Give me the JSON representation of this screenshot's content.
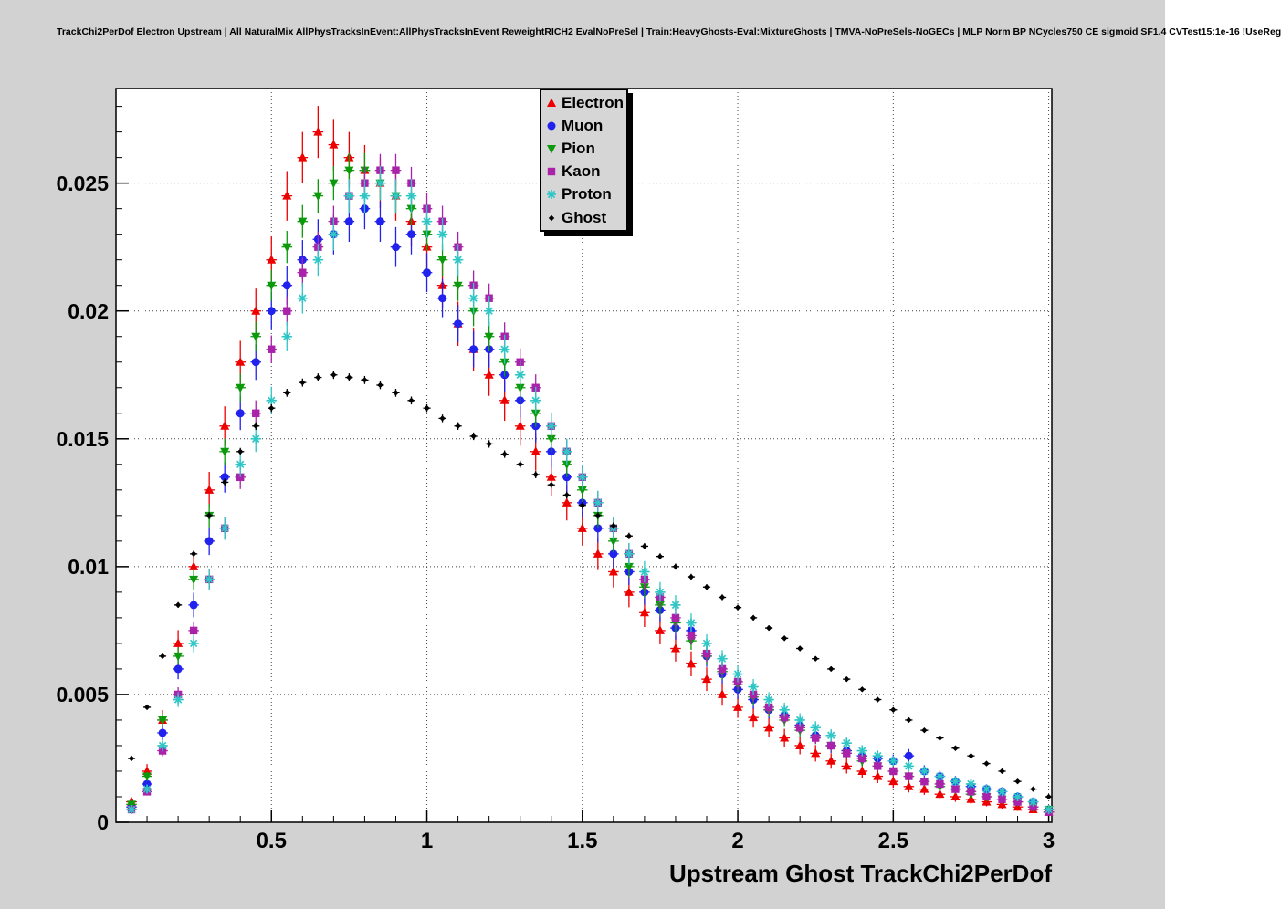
{
  "page": {
    "background_color": "#d2d2d2",
    "plot_background_color": "#ffffff",
    "grid_color": "#444444"
  },
  "header": {
    "title": "TrackChi2PerDof Electron Upstream | All NaturalMix AllPhysTracksInEvent:AllPhysTracksInEvent ReweightRICH2 EvalNoPreSel | Train:HeavyGhosts-Eval:MixtureGhosts | TMVA-NoPreSels-NoGECs | MLP Norm BP NCycles750 CE sigmoid SF1.4 CVTest15:1e-16 !UseReg"
  },
  "chart_data": {
    "type": "scatter",
    "title": "TrackChi2PerDof Electron Upstream | All NaturalMix AllPhysTracksInEvent:AllPhysTracksInEvent ReweightRICH2 EvalNoPreSel | Train:HeavyGhosts-Eval:MixtureGhosts | TMVA-NoPreSels-NoGECs | MLP Norm BP NCycles750 CE sigmoid SF1.4 CVTest15:1e-16 !UseReg",
    "xlabel": "Upstream Ghost TrackChi2PerDof",
    "ylabel": "",
    "xlim": [
      0,
      3.01
    ],
    "ylim": [
      0,
      0.0287
    ],
    "grid": true,
    "legend_position": "top-center",
    "xticks": {
      "values": [
        0.5,
        1,
        1.5,
        2,
        2.5,
        3
      ],
      "labels": [
        "0.5",
        "1",
        "1.5",
        "2",
        "2.5",
        "3"
      ]
    },
    "yticks": {
      "values": [
        0,
        0.005,
        0.01,
        0.015,
        0.02,
        0.025
      ],
      "labels": [
        "0",
        "0.005",
        "0.01",
        "0.015",
        "0.02",
        "0.025"
      ]
    },
    "x": [
      0.05,
      0.1,
      0.15,
      0.2,
      0.25,
      0.3,
      0.35,
      0.4,
      0.45,
      0.5,
      0.55,
      0.6,
      0.65,
      0.7,
      0.75,
      0.8,
      0.85,
      0.9,
      0.95,
      1,
      1.05,
      1.1,
      1.15,
      1.2,
      1.25,
      1.3,
      1.35,
      1.4,
      1.45,
      1.5,
      1.55,
      1.6,
      1.65,
      1.7,
      1.75,
      1.8,
      1.85,
      1.9,
      1.95,
      2,
      2.05,
      2.1,
      2.15,
      2.2,
      2.25,
      2.3,
      2.35,
      2.4,
      2.45,
      2.5,
      2.55,
      2.6,
      2.65,
      2.7,
      2.75,
      2.8,
      2.85,
      2.9,
      2.95,
      3
    ],
    "series": [
      {
        "name": "Electron",
        "color": "#ee0000",
        "marker": "triangle-up",
        "err_scale": 0.0062,
        "xerr": 0.017,
        "values": [
          0.0008,
          0.002,
          0.004,
          0.007,
          0.01,
          0.013,
          0.0155,
          0.018,
          0.02,
          0.022,
          0.0245,
          0.026,
          0.027,
          0.0265,
          0.026,
          0.0255,
          0.025,
          0.0245,
          0.0235,
          0.0225,
          0.021,
          0.0195,
          0.0185,
          0.0175,
          0.0165,
          0.0155,
          0.0145,
          0.0135,
          0.0125,
          0.0115,
          0.0105,
          0.0098,
          0.009,
          0.0082,
          0.0075,
          0.0068,
          0.0062,
          0.0056,
          0.005,
          0.0045,
          0.0041,
          0.0037,
          0.0033,
          0.003,
          0.0027,
          0.0024,
          0.0022,
          0.002,
          0.0018,
          0.0016,
          0.0014,
          0.0013,
          0.0011,
          0.001,
          0.0009,
          0.0008,
          0.0007,
          0.0006,
          0.0005,
          0.0004
        ]
      },
      {
        "name": "Muon",
        "color": "#2222ee",
        "marker": "circle",
        "err_scale": 0.0052,
        "xerr": 0.017,
        "values": [
          0.0006,
          0.0015,
          0.0035,
          0.006,
          0.0085,
          0.011,
          0.0135,
          0.016,
          0.018,
          0.02,
          0.021,
          0.022,
          0.0228,
          0.023,
          0.0235,
          0.024,
          0.0235,
          0.0225,
          0.023,
          0.0215,
          0.0205,
          0.0195,
          0.0185,
          0.0185,
          0.0175,
          0.0165,
          0.0155,
          0.0145,
          0.0135,
          0.0125,
          0.0115,
          0.0105,
          0.0098,
          0.009,
          0.0083,
          0.0076,
          0.0075,
          0.0065,
          0.0058,
          0.0052,
          0.0048,
          0.0044,
          0.0042,
          0.0038,
          0.0034,
          0.003,
          0.0028,
          0.0026,
          0.0025,
          0.0024,
          0.0026,
          0.002,
          0.0018,
          0.0016,
          0.0014,
          0.0013,
          0.0012,
          0.001,
          0.0008,
          0.0005
        ]
      },
      {
        "name": "Pion",
        "color": "#0c9a0c",
        "marker": "triangle-down",
        "err_scale": 0.0042,
        "xerr": 0.017,
        "values": [
          0.0007,
          0.0018,
          0.004,
          0.0065,
          0.0095,
          0.012,
          0.0145,
          0.017,
          0.019,
          0.021,
          0.0225,
          0.0235,
          0.0245,
          0.025,
          0.0255,
          0.0255,
          0.025,
          0.0245,
          0.024,
          0.023,
          0.022,
          0.021,
          0.02,
          0.019,
          0.018,
          0.017,
          0.016,
          0.015,
          0.014,
          0.013,
          0.012,
          0.011,
          0.01,
          0.0092,
          0.0085,
          0.0078,
          0.0071,
          0.0065,
          0.0059,
          0.0054,
          0.0049,
          0.0044,
          0.004,
          0.0036,
          0.0033,
          0.003,
          0.0027,
          0.0024,
          0.0022,
          0.002,
          0.0018,
          0.0016,
          0.0014,
          0.0013,
          0.0011,
          0.001,
          0.0009,
          0.0008,
          0.0006,
          0.0005
        ]
      },
      {
        "name": "Kaon",
        "color": "#aa22aa",
        "marker": "square",
        "err_scale": 0.004,
        "xerr": 0.017,
        "values": [
          0.0005,
          0.0012,
          0.0028,
          0.005,
          0.0075,
          0.0095,
          0.0115,
          0.0135,
          0.016,
          0.0185,
          0.02,
          0.0215,
          0.0225,
          0.0235,
          0.0245,
          0.025,
          0.0255,
          0.0255,
          0.025,
          0.024,
          0.0235,
          0.0225,
          0.021,
          0.0205,
          0.019,
          0.018,
          0.017,
          0.0155,
          0.0145,
          0.0135,
          0.0125,
          0.0115,
          0.0105,
          0.0095,
          0.0088,
          0.008,
          0.0073,
          0.0066,
          0.006,
          0.0055,
          0.005,
          0.0045,
          0.0041,
          0.0037,
          0.0033,
          0.003,
          0.0027,
          0.0025,
          0.0022,
          0.002,
          0.0018,
          0.0016,
          0.0015,
          0.0013,
          0.0012,
          0.001,
          0.0009,
          0.0008,
          0.0006,
          0.0004
        ]
      },
      {
        "name": "Proton",
        "color": "#30c6c6",
        "marker": "star",
        "err_scale": 0.0042,
        "xerr": 0.017,
        "values": [
          0.0005,
          0.0013,
          0.003,
          0.0048,
          0.007,
          0.0095,
          0.0115,
          0.014,
          0.015,
          0.0165,
          0.019,
          0.0205,
          0.022,
          0.023,
          0.0245,
          0.0245,
          0.025,
          0.0245,
          0.0245,
          0.0235,
          0.023,
          0.022,
          0.0205,
          0.02,
          0.0185,
          0.0175,
          0.0165,
          0.0155,
          0.0145,
          0.0135,
          0.0125,
          0.0115,
          0.0105,
          0.0098,
          0.009,
          0.0085,
          0.0078,
          0.007,
          0.0064,
          0.0058,
          0.0053,
          0.0048,
          0.0044,
          0.004,
          0.0037,
          0.0034,
          0.0031,
          0.0028,
          0.0026,
          0.0024,
          0.0022,
          0.002,
          0.0018,
          0.0016,
          0.0015,
          0.0013,
          0.0012,
          0.001,
          0.0008,
          0.0005
        ]
      },
      {
        "name": "Ghost",
        "color": "#000000",
        "marker": "diamond",
        "err_scale": 0.0012,
        "xerr": 0.012,
        "values": [
          0.0025,
          0.0045,
          0.0065,
          0.0085,
          0.0105,
          0.012,
          0.0133,
          0.0145,
          0.0155,
          0.0162,
          0.0168,
          0.0172,
          0.0174,
          0.0175,
          0.0174,
          0.0173,
          0.0171,
          0.0168,
          0.0165,
          0.0162,
          0.0158,
          0.0155,
          0.0151,
          0.0148,
          0.0144,
          0.014,
          0.0136,
          0.0132,
          0.0128,
          0.0124,
          0.012,
          0.0116,
          0.0112,
          0.0108,
          0.0104,
          0.01,
          0.0096,
          0.0092,
          0.0088,
          0.0084,
          0.008,
          0.0076,
          0.0072,
          0.0068,
          0.0064,
          0.006,
          0.0056,
          0.0052,
          0.0048,
          0.0044,
          0.004,
          0.0036,
          0.0033,
          0.0029,
          0.0026,
          0.0023,
          0.002,
          0.0016,
          0.0013,
          0.001
        ]
      }
    ]
  }
}
